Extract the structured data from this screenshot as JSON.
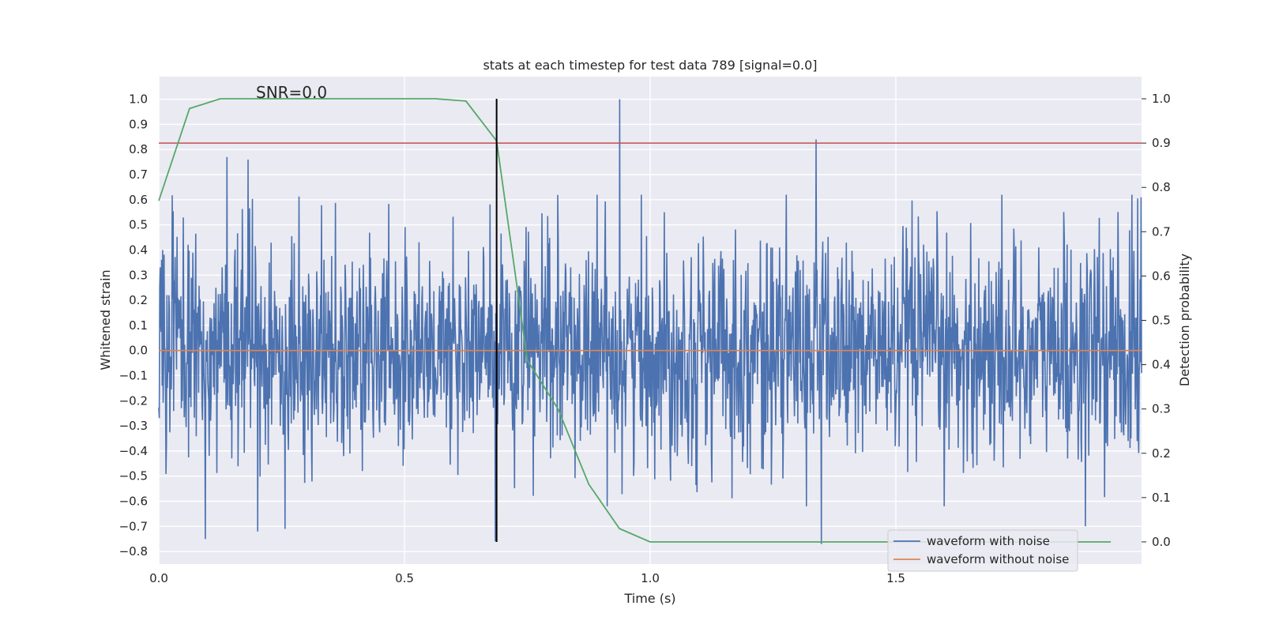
{
  "chart_data": {
    "type": "line",
    "title": "stats at each timestep for test data 789 [signal=0.0]",
    "xlabel": "Time (s)",
    "ylabel": "Whitened strain",
    "y2label": "Detection probability",
    "xlim": [
      0.0,
      2.0
    ],
    "ylim": [
      -0.85,
      1.09
    ],
    "y2lim": [
      -0.05,
      1.05
    ],
    "x_ticks": [
      0.0,
      0.5,
      1.0,
      1.5
    ],
    "x_tick_labels": [
      "0.0",
      "0.5",
      "1.0",
      "1.5"
    ],
    "y_ticks": [
      1.0,
      0.9,
      0.8,
      0.7,
      0.6,
      0.5,
      0.4,
      0.3,
      0.2,
      0.1,
      0.0,
      -0.1,
      -0.2,
      -0.3,
      -0.4,
      -0.5,
      -0.6,
      -0.7,
      -0.8
    ],
    "y_tick_labels": [
      "1.0",
      "0.9",
      "0.8",
      "0.7",
      "0.6",
      "0.5",
      "0.4",
      "0.3",
      "0.2",
      "0.1",
      "0.0",
      "−0.1",
      "−0.2",
      "−0.3",
      "−0.4",
      "−0.5",
      "−0.6",
      "−0.7",
      "−0.8"
    ],
    "y2_ticks": [
      1.0,
      0.9,
      0.8,
      0.7,
      0.6,
      0.5,
      0.4,
      0.3,
      0.2,
      0.1,
      0.0
    ],
    "y2_tick_labels": [
      "1.0",
      "0.9",
      "0.8",
      "0.7",
      "0.6",
      "0.5",
      "0.4",
      "0.3",
      "0.2",
      "0.1",
      "0.0"
    ],
    "grid": true,
    "legend_placement": "lower-right",
    "annotation": "SNR=0.0",
    "series": [
      {
        "name": "waveform with noise",
        "axis": "left",
        "color": "#4c72b0",
        "description_samples": 2048,
        "peaks": [
          {
            "x": 0.139,
            "y": 0.77
          },
          {
            "x": 0.182,
            "y": 0.76
          },
          {
            "x": 0.095,
            "y": -0.75
          },
          {
            "x": 0.201,
            "y": -0.72
          },
          {
            "x": 0.257,
            "y": -0.71
          },
          {
            "x": 0.685,
            "y": -0.76
          },
          {
            "x": 0.938,
            "y": 1.0
          },
          {
            "x": 1.338,
            "y": 0.84
          },
          {
            "x": 1.348,
            "y": -0.77
          },
          {
            "x": 1.886,
            "y": -0.7
          },
          {
            "x": 1.999,
            "y": 0.61
          }
        ]
      },
      {
        "name": "waveform without noise",
        "axis": "left",
        "color": "#dd8452",
        "x": [
          0.0,
          2.0
        ],
        "y": [
          0.0,
          0.0
        ]
      },
      {
        "name": "",
        "axis": "right",
        "color": "#55a868",
        "x": [
          0.0,
          0.0625,
          0.125,
          0.1875,
          0.25,
          0.3125,
          0.375,
          0.4375,
          0.5,
          0.5625,
          0.625,
          0.6875,
          0.75,
          0.8125,
          0.875,
          0.9375,
          1.0,
          1.0625,
          1.125,
          1.1875,
          1.25,
          1.3125,
          1.375,
          1.4375,
          1.5,
          1.5625,
          1.625,
          1.6875,
          1.75,
          1.8125,
          1.875,
          1.9375
        ],
        "y": [
          0.77,
          0.978,
          1.0,
          1.0,
          1.0,
          1.0,
          1.0,
          1.0,
          1.0,
          1.0,
          0.995,
          0.905,
          0.41,
          0.3,
          0.13,
          0.03,
          0.0,
          0.0,
          0.0,
          0.0,
          0.0,
          0.0,
          0.0,
          0.0,
          0.0,
          0.0,
          0.0,
          0.0,
          0.0,
          0.0,
          0.0,
          0.0
        ]
      }
    ],
    "threshold_line": {
      "axis": "right",
      "y": 0.9,
      "color": "#c44e52"
    },
    "marker_line": {
      "x": 0.6875,
      "y_from": 0.0,
      "y_to": 1.0,
      "color": "#000000"
    }
  },
  "legend": {
    "items": [
      {
        "label": "waveform with noise",
        "color": "#4c72b0"
      },
      {
        "label": "waveform without noise",
        "color": "#dd8452"
      }
    ]
  }
}
